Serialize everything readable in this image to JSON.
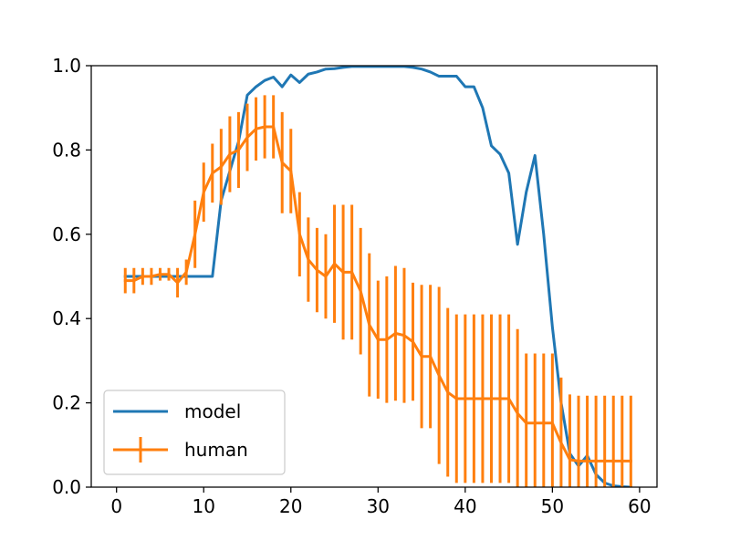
{
  "chart_data": {
    "type": "line",
    "title": "",
    "xlabel": "",
    "ylabel": "",
    "xlim": [
      -2.9,
      62
    ],
    "ylim": [
      0.0,
      1.0
    ],
    "grid": false,
    "legend_position": "lower-left",
    "x_ticks": [
      0,
      10,
      20,
      30,
      40,
      50,
      60
    ],
    "y_ticks": [
      0.0,
      0.2,
      0.4,
      0.6,
      0.8,
      1.0
    ],
    "x_tick_labels": [
      "0",
      "10",
      "20",
      "30",
      "40",
      "50",
      "60"
    ],
    "y_tick_labels": [
      "0.0",
      "0.2",
      "0.4",
      "0.6",
      "0.8",
      "1.0"
    ],
    "series": [
      {
        "name": "model",
        "color": "#1f77b4",
        "x": [
          1,
          2,
          3,
          4,
          5,
          6,
          7,
          8,
          9,
          10,
          11,
          12,
          13,
          14,
          15,
          16,
          17,
          18,
          19,
          20,
          21,
          22,
          23,
          24,
          25,
          26,
          27,
          28,
          29,
          30,
          31,
          32,
          33,
          34,
          35,
          36,
          37,
          38,
          39,
          40,
          41,
          42,
          43,
          44,
          45,
          46,
          47,
          48,
          49,
          50,
          51,
          52,
          53,
          54,
          55,
          56,
          57,
          58,
          59
        ],
        "y": [
          0.5,
          0.5,
          0.5,
          0.5,
          0.5,
          0.5,
          0.5,
          0.5,
          0.5,
          0.5,
          0.5,
          0.68,
          0.75,
          0.82,
          0.93,
          0.95,
          0.965,
          0.973,
          0.95,
          0.978,
          0.96,
          0.98,
          0.985,
          0.992,
          0.993,
          0.996,
          0.998,
          0.998,
          0.998,
          0.998,
          0.998,
          0.998,
          0.998,
          0.996,
          0.992,
          0.985,
          0.975,
          0.975,
          0.975,
          0.95,
          0.95,
          0.9,
          0.81,
          0.79,
          0.745,
          0.576,
          0.7,
          0.787,
          0.6,
          0.38,
          0.2,
          0.08,
          0.05,
          0.075,
          0.03,
          0.01,
          0.003,
          0.001,
          0.0
        ]
      },
      {
        "name": "human",
        "color": "#ff7f0e",
        "x": [
          1,
          2,
          3,
          4,
          5,
          6,
          7,
          8,
          9,
          10,
          11,
          12,
          13,
          14,
          15,
          16,
          17,
          18,
          19,
          20,
          21,
          22,
          23,
          24,
          25,
          26,
          27,
          28,
          29,
          30,
          31,
          32,
          33,
          34,
          35,
          36,
          37,
          38,
          39,
          40,
          41,
          42,
          43,
          44,
          45,
          46,
          47,
          48,
          49,
          50,
          51,
          52,
          53,
          54,
          55,
          56,
          57,
          58,
          59
        ],
        "y": [
          0.49,
          0.49,
          0.5,
          0.5,
          0.505,
          0.505,
          0.485,
          0.51,
          0.6,
          0.7,
          0.745,
          0.76,
          0.79,
          0.8,
          0.83,
          0.85,
          0.855,
          0.855,
          0.77,
          0.75,
          0.6,
          0.54,
          0.515,
          0.5,
          0.53,
          0.51,
          0.51,
          0.465,
          0.385,
          0.35,
          0.35,
          0.365,
          0.36,
          0.345,
          0.31,
          0.31,
          0.265,
          0.225,
          0.21,
          0.21,
          0.21,
          0.21,
          0.21,
          0.21,
          0.21,
          0.175,
          0.152,
          0.152,
          0.152,
          0.152,
          0.105,
          0.065,
          0.062,
          0.062,
          0.062,
          0.062,
          0.062,
          0.062,
          0.062
        ],
        "err": [
          0.03,
          0.03,
          0.02,
          0.02,
          0.015,
          0.015,
          0.035,
          0.03,
          0.08,
          0.07,
          0.07,
          0.09,
          0.09,
          0.09,
          0.08,
          0.075,
          0.075,
          0.075,
          0.12,
          0.1,
          0.1,
          0.1,
          0.1,
          0.1,
          0.14,
          0.16,
          0.16,
          0.15,
          0.17,
          0.14,
          0.15,
          0.16,
          0.16,
          0.14,
          0.17,
          0.17,
          0.21,
          0.2,
          0.2,
          0.2,
          0.2,
          0.2,
          0.2,
          0.2,
          0.2,
          0.2,
          0.165,
          0.165,
          0.165,
          0.165,
          0.155,
          0.155,
          0.155,
          0.155,
          0.155,
          0.155,
          0.155,
          0.155,
          0.155
        ]
      }
    ]
  }
}
